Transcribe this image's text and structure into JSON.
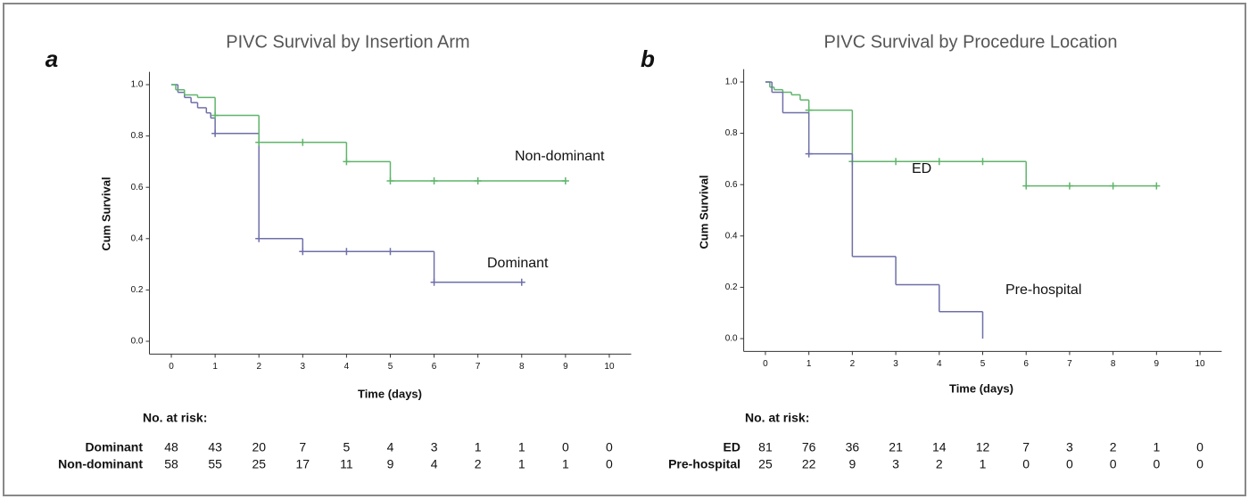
{
  "chart_data": [
    {
      "type": "km",
      "panel": "a",
      "title": "PIVC Survival by Insertion Arm",
      "xlabel": "Time (days)",
      "ylabel": "Cum Survival",
      "xlim": [
        -0.5,
        10.5
      ],
      "ylim": [
        -0.05,
        1.05
      ],
      "xticks": [
        0,
        1,
        2,
        3,
        4,
        5,
        6,
        7,
        8,
        9,
        10
      ],
      "yticks": [
        {
          "value": 0,
          "label": "0.0"
        },
        {
          "value": 0.2,
          "label": "0.2"
        },
        {
          "value": 0.4,
          "label": "0.4"
        },
        {
          "value": 0.6,
          "label": "0.6"
        },
        {
          "value": 0.8,
          "label": "0.8"
        },
        {
          "value": 1,
          "label": "1.0"
        }
      ],
      "series": [
        {
          "name": "Dominant",
          "color": "#6e6fa8",
          "x": [
            0,
            0.15,
            0.3,
            0.45,
            0.6,
            0.8,
            0.9,
            1,
            2,
            3,
            6,
            8
          ],
          "values": [
            1,
            0.97,
            0.95,
            0.93,
            0.91,
            0.89,
            0.87,
            0.81,
            0.4,
            0.35,
            0.23,
            0.23
          ],
          "censored": {
            "x": [
              1,
              2,
              3,
              4,
              5,
              6,
              8
            ],
            "values": [
              0.81,
              0.4,
              0.35,
              0.35,
              0.35,
              0.23,
              0.23
            ]
          }
        },
        {
          "name": "Non-dominant",
          "color": "#5fb56a",
          "x": [
            0,
            0.1,
            0.3,
            0.6,
            1,
            2,
            4,
            5,
            9
          ],
          "values": [
            1,
            0.98,
            0.96,
            0.95,
            0.88,
            0.775,
            0.7,
            0.625,
            0.625
          ],
          "censored": {
            "x": [
              1,
              2,
              3,
              4,
              5,
              6,
              7,
              9
            ],
            "values": [
              0.88,
              0.775,
              0.775,
              0.7,
              0.625,
              0.625,
              0.625,
              0.625
            ]
          }
        }
      ],
      "risk_table": {
        "title": "No. at risk:",
        "rows": [
          {
            "name": "Dominant",
            "values": [
              48,
              43,
              20,
              7,
              5,
              4,
              3,
              1,
              1,
              0,
              0
            ]
          },
          {
            "name": "Non-dominant",
            "values": [
              58,
              55,
              25,
              17,
              11,
              9,
              4,
              2,
              1,
              1,
              0
            ]
          }
        ]
      }
    },
    {
      "type": "km",
      "panel": "b",
      "title": "PIVC Survival by Procedure Location",
      "xlabel": "Time (days)",
      "ylabel": "Cum Survival",
      "xlim": [
        -0.5,
        10.5
      ],
      "ylim": [
        -0.05,
        1.05
      ],
      "xticks": [
        0,
        1,
        2,
        3,
        4,
        5,
        6,
        7,
        8,
        9,
        10
      ],
      "yticks": [
        {
          "value": 0,
          "label": "0.0"
        },
        {
          "value": 0.2,
          "label": "0.2"
        },
        {
          "value": 0.4,
          "label": "0.4"
        },
        {
          "value": 0.6,
          "label": "0.6"
        },
        {
          "value": 0.8,
          "label": "0.8"
        },
        {
          "value": 1,
          "label": "1.0"
        }
      ],
      "series": [
        {
          "name": "ED",
          "color": "#5fb56a",
          "x": [
            0,
            0.1,
            0.2,
            0.4,
            0.6,
            0.8,
            1,
            2,
            6,
            9
          ],
          "values": [
            1,
            0.98,
            0.97,
            0.96,
            0.95,
            0.93,
            0.89,
            0.69,
            0.595,
            0.595
          ],
          "censored": {
            "x": [
              1,
              2,
              3,
              4,
              5,
              6,
              7,
              8,
              9
            ],
            "values": [
              0.89,
              0.69,
              0.69,
              0.69,
              0.69,
              0.595,
              0.595,
              0.595,
              0.595
            ]
          }
        },
        {
          "name": "Pre-hospital",
          "color": "#6e6fa8",
          "x": [
            0,
            0.15,
            0.4,
            1,
            2,
            3,
            4,
            5
          ],
          "values": [
            1,
            0.96,
            0.88,
            0.72,
            0.32,
            0.21,
            0.105,
            0
          ],
          "censored": {
            "x": [
              1
            ],
            "values": [
              0.72
            ]
          }
        }
      ],
      "risk_table": {
        "title": "No. at risk:",
        "rows": [
          {
            "name": "ED",
            "values": [
              81,
              76,
              36,
              21,
              14,
              12,
              7,
              3,
              2,
              1,
              0
            ]
          },
          {
            "name": "Pre-hospital",
            "values": [
              25,
              22,
              9,
              3,
              2,
              1,
              0,
              0,
              0,
              0,
              0
            ]
          }
        ]
      }
    }
  ]
}
